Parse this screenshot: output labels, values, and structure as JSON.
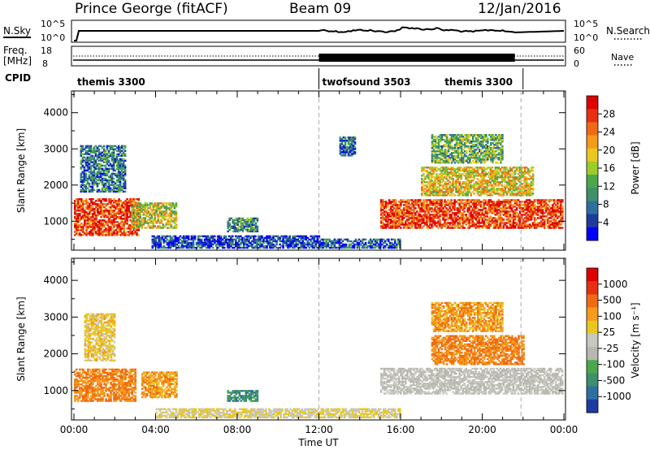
{
  "header": {
    "station": "Prince George (fitACF)",
    "beam": "Beam 09",
    "date": "12/Jan/2016"
  },
  "sky_panel": {
    "left_label": "N.Sky",
    "right_label": "N.Search",
    "left_ticks": [
      "10^5",
      "10^0"
    ],
    "right_ticks": [
      "10^5",
      "10^0"
    ]
  },
  "freq_panel": {
    "left_label_1": "Freq.",
    "left_label_2": "[MHz]",
    "right_label": "Nave",
    "left_ticks": [
      "18",
      "8"
    ],
    "right_ticks": [
      "60",
      "0"
    ]
  },
  "cpid_panel": {
    "label": "CPID",
    "modes": [
      {
        "name": "themis 3300",
        "start_h": 0,
        "end_h": 12
      },
      {
        "name": "twofsound 3503",
        "start_h": 12,
        "end_h": 22
      },
      {
        "name": "themis 3300",
        "start_h": 22,
        "end_h": 24
      }
    ]
  },
  "chart_data": [
    {
      "type": "heatmap",
      "name": "power",
      "ylabel": "Slant Range [km]",
      "yticks": [
        1000,
        2000,
        3000,
        4000
      ],
      "ylim": [
        200,
        4600
      ],
      "xlim_h": [
        0,
        24
      ],
      "colorbar": {
        "label": "Power [dB]",
        "ticks": [
          "28",
          "24",
          "20",
          "16",
          "12",
          "8",
          "4"
        ],
        "colors": [
          "#0000ff",
          "#1e3c9c",
          "#2e6fa0",
          "#3f8f6a",
          "#4aa84a",
          "#9ccc2a",
          "#e8c81e",
          "#f59a1a",
          "#f06a14",
          "#e83010",
          "#e00000"
        ]
      },
      "echo_regions": [
        {
          "t0": 0.0,
          "t1": 3.2,
          "r0": 600,
          "r1": 1600,
          "level": 0.85
        },
        {
          "t0": 0.3,
          "t1": 2.5,
          "r0": 1800,
          "r1": 3100,
          "level": 0.25
        },
        {
          "t0": 2.8,
          "t1": 5.0,
          "r0": 800,
          "r1": 1500,
          "level": 0.55
        },
        {
          "t0": 3.8,
          "t1": 12.0,
          "r0": 250,
          "r1": 600,
          "level": 0.15
        },
        {
          "t0": 7.5,
          "t1": 9.0,
          "r0": 700,
          "r1": 1100,
          "level": 0.3
        },
        {
          "t0": 12.0,
          "t1": 16.0,
          "r0": 250,
          "r1": 500,
          "level": 0.2
        },
        {
          "t0": 13.0,
          "t1": 13.8,
          "r0": 2800,
          "r1": 3300,
          "level": 0.2
        },
        {
          "t0": 15.0,
          "t1": 23.9,
          "r0": 800,
          "r1": 1600,
          "level": 0.85
        },
        {
          "t0": 17.0,
          "t1": 22.5,
          "r0": 1700,
          "r1": 2500,
          "level": 0.6
        },
        {
          "t0": 17.5,
          "t1": 21.0,
          "r0": 2600,
          "r1": 3400,
          "level": 0.4
        }
      ]
    },
    {
      "type": "heatmap",
      "name": "velocity",
      "ylabel": "Slant Range [km]",
      "yticks": [
        1000,
        2000,
        3000,
        4000
      ],
      "ylim": [
        200,
        4600
      ],
      "xlim_h": [
        0,
        24
      ],
      "colorbar": {
        "label": "Velocity [m s⁻¹]",
        "ticks": [
          "1000",
          "500",
          "100",
          "25",
          "-25",
          "-100",
          "-500",
          "-1000"
        ],
        "colors": [
          "#1e3ca0",
          "#2e6fa0",
          "#3f8f6a",
          "#4aa84a",
          "#b8b8b0",
          "#c8c8c0",
          "#e8c81e",
          "#f59a1a",
          "#f06a14",
          "#e83010",
          "#e00000"
        ]
      },
      "echo_regions": [
        {
          "t0": 0.0,
          "t1": 3.0,
          "r0": 700,
          "r1": 1600,
          "level": 0.75
        },
        {
          "t0": 0.5,
          "t1": 2.0,
          "r0": 1800,
          "r1": 3100,
          "level": 0.6
        },
        {
          "t0": 3.3,
          "t1": 5.0,
          "r0": 800,
          "r1": 1500,
          "level": 0.7
        },
        {
          "t0": 7.5,
          "t1": 9.0,
          "r0": 700,
          "r1": 1000,
          "level": 0.2
        },
        {
          "t0": 4.0,
          "t1": 16.0,
          "r0": 250,
          "r1": 500,
          "level": 0.55
        },
        {
          "t0": 15.0,
          "t1": 23.9,
          "r0": 900,
          "r1": 1600,
          "level": 0.45
        },
        {
          "t0": 17.5,
          "t1": 22.0,
          "r0": 1700,
          "r1": 2500,
          "level": 0.75
        },
        {
          "t0": 17.5,
          "t1": 21.0,
          "r0": 2600,
          "r1": 3400,
          "level": 0.7
        }
      ]
    }
  ],
  "x_axis": {
    "label": "Time UT",
    "ticks": [
      "00:00",
      "04:00",
      "08:00",
      "12:00",
      "16:00",
      "20:00",
      "00:00"
    ]
  }
}
